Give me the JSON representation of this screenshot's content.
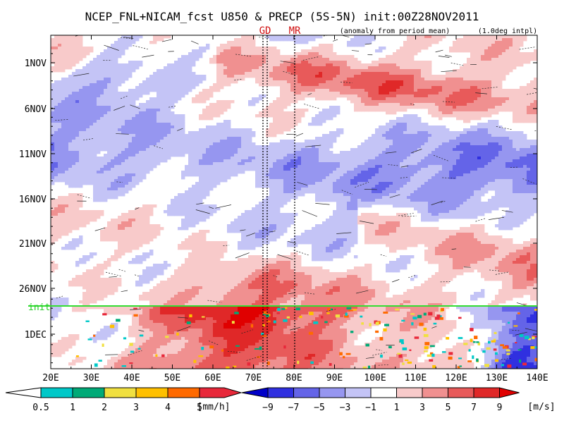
{
  "chart_data": {
    "type": "heatmap",
    "title": "NCEP_FNL+NICAM_fcst U850 & PRECP (5S-5N) init:00Z28NOV2011",
    "subtitle": "(anomaly from period mean)",
    "note": "(1.0deg intpl)",
    "markers": [
      {
        "label": "GD",
        "lon": 73
      },
      {
        "label": "MR",
        "lon": 80
      }
    ],
    "x_ticks": [
      "20E",
      "30E",
      "40E",
      "50E",
      "60E",
      "70E",
      "80E",
      "90E",
      "100E",
      "110E",
      "120E",
      "130E",
      "140E"
    ],
    "xlim": [
      20,
      140
    ],
    "y_ticks": [
      "1NOV",
      "6NOV",
      "11NOV",
      "16NOV",
      "21NOV",
      "26NOV",
      "1DEC"
    ],
    "init_label": "init",
    "precip_colorbar": {
      "unit": "[mm/h]",
      "labels": [
        "0.5",
        "1",
        "2",
        "3",
        "4",
        "5"
      ],
      "colors": [
        "#00c8c8",
        "#00aa77",
        "#f0e040",
        "#ffc000",
        "#ff6a00",
        "#e8283a"
      ]
    },
    "wind_colorbar": {
      "unit": "[m/s]",
      "labels": [
        "−9",
        "−7",
        "−5",
        "−3",
        "−1",
        "1",
        "3",
        "5",
        "7",
        "9"
      ],
      "colors": [
        "#0000c8",
        "#3030e0",
        "#6464e8",
        "#9696f0",
        "#c4c4f6",
        "#ffffff",
        "#f8caca",
        "#f09090",
        "#e85a5a",
        "#e02828",
        "#e00000"
      ]
    }
  }
}
